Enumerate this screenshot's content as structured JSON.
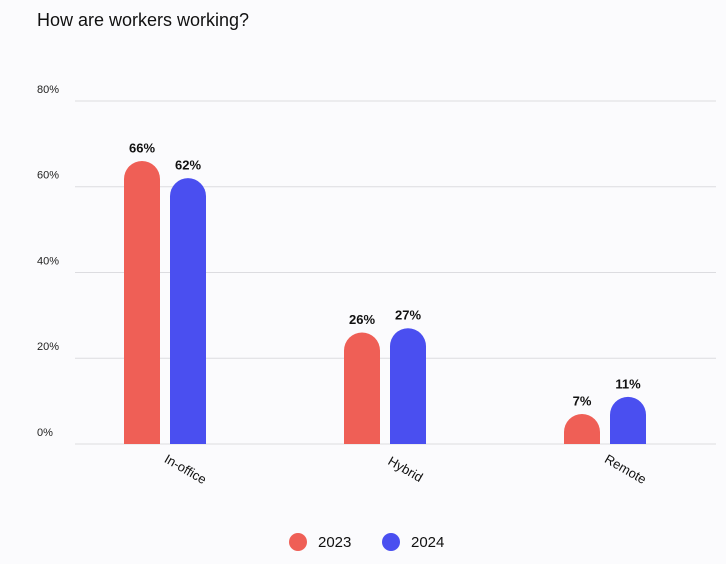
{
  "chart_data": {
    "type": "bar",
    "title": "How are workers working?",
    "categories": [
      "In-office",
      "Hybrid",
      "Remote"
    ],
    "series": [
      {
        "name": "2023",
        "color": "#ef5f56",
        "values": [
          66,
          26,
          7
        ],
        "value_labels": [
          "66%",
          "26%",
          "7%"
        ]
      },
      {
        "name": "2024",
        "color": "#4a4ff0",
        "values": [
          62,
          27,
          11
        ],
        "value_labels": [
          "62%",
          "27%",
          "11%"
        ]
      }
    ],
    "ylim": [
      0,
      80
    ],
    "yticks": [
      {
        "value": 0,
        "label": "0%"
      },
      {
        "value": 20,
        "label": "20%"
      },
      {
        "value": 40,
        "label": "40%"
      },
      {
        "value": 60,
        "label": "60%"
      },
      {
        "value": 80,
        "label": "80%"
      }
    ],
    "grid": true,
    "legend": "bottom"
  }
}
